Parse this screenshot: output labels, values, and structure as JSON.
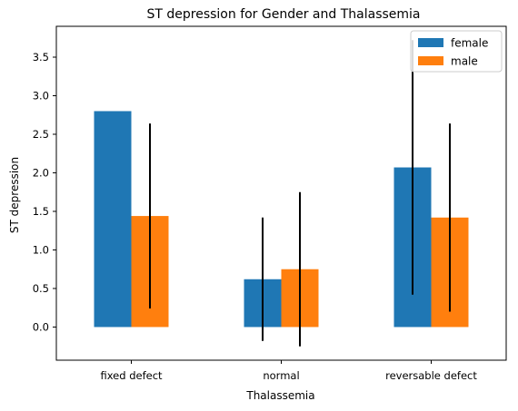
{
  "chart_data": {
    "type": "bar",
    "title": "ST depression for Gender and Thalassemia",
    "xlabel": "Thalassemia",
    "ylabel": "ST depression",
    "categories": [
      "fixed defect",
      "normal",
      "reversable defect"
    ],
    "series": [
      {
        "name": "female",
        "color": "#1f77b4",
        "values": [
          2.8,
          0.62,
          2.07
        ],
        "errors": [
          null,
          0.8,
          1.65
        ]
      },
      {
        "name": "male",
        "color": "#ff7f0e",
        "values": [
          1.44,
          0.75,
          1.42
        ],
        "errors": [
          1.2,
          1.0,
          1.22
        ]
      }
    ],
    "ylim": [
      -0.43,
      3.9
    ],
    "yticks": [
      0.0,
      0.5,
      1.0,
      1.5,
      2.0,
      2.5,
      3.0,
      3.5
    ],
    "ytick_labels": [
      "0.0",
      "0.5",
      "1.0",
      "1.5",
      "2.0",
      "2.5",
      "3.0",
      "3.5"
    ],
    "grid": false,
    "legend_position": "top-right"
  }
}
